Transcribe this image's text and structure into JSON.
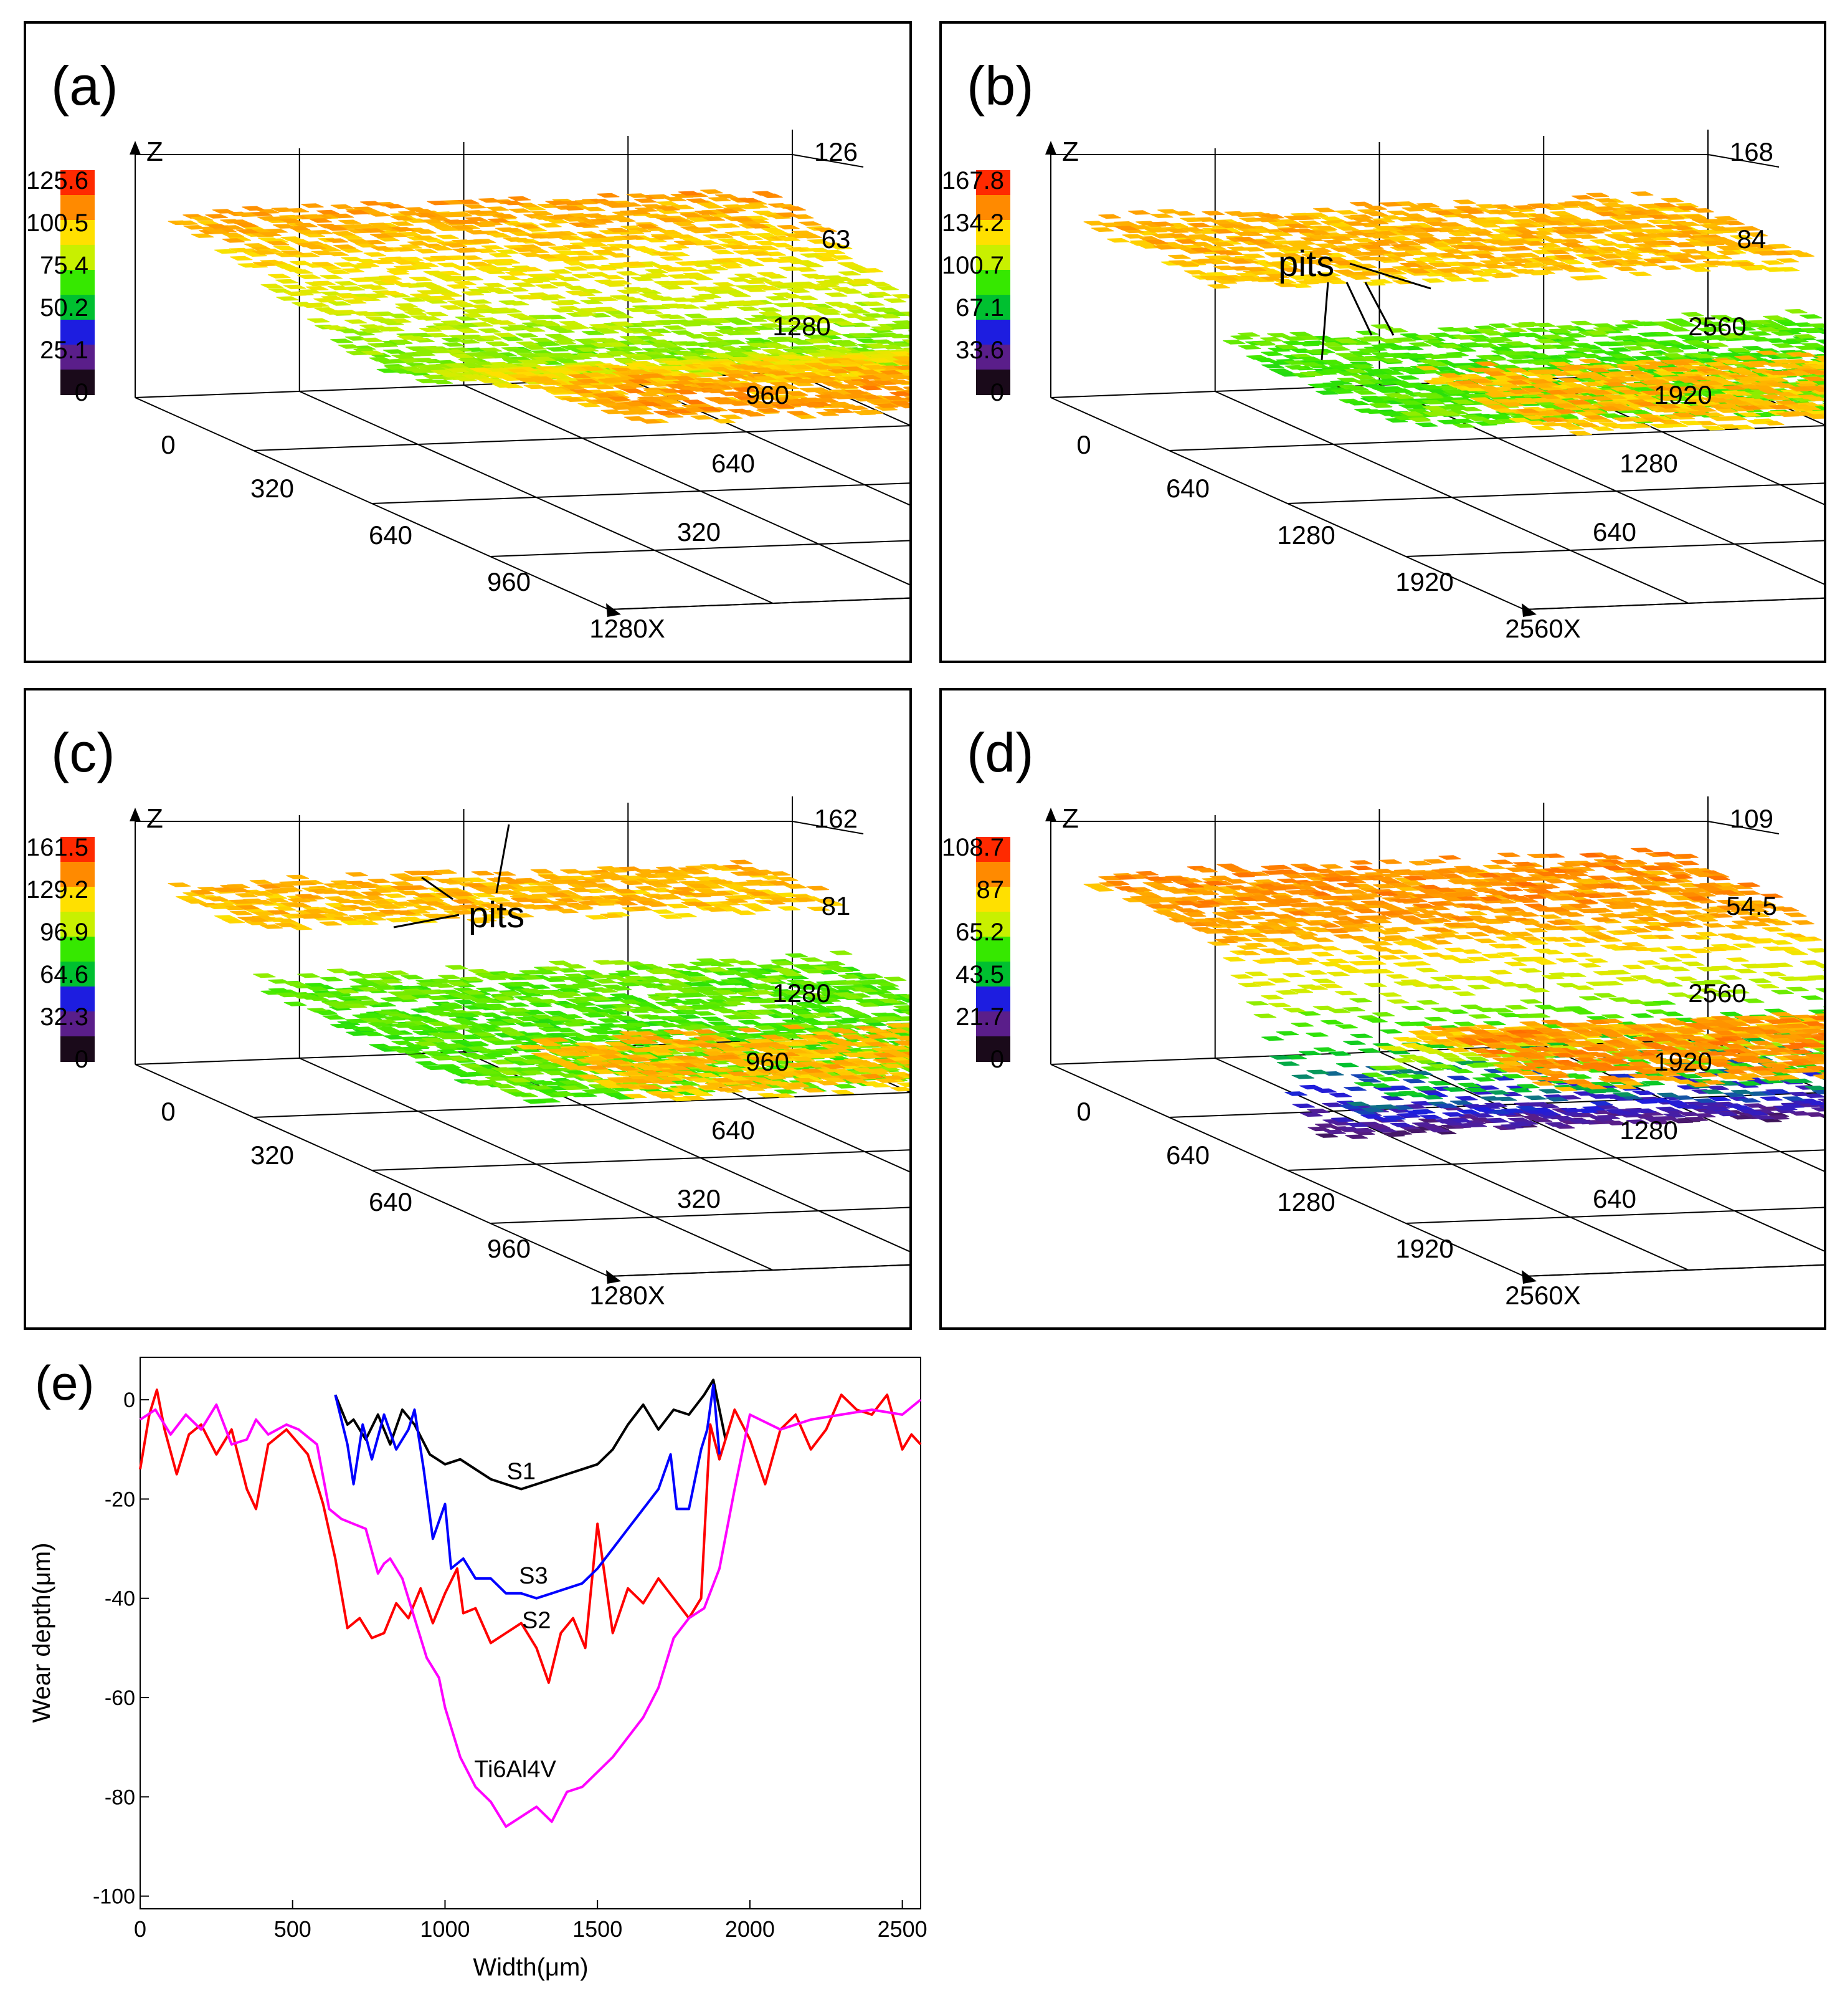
{
  "colors": {
    "colorbar": [
      "#1a0a1a",
      "#5a1e8a",
      "#1d1de0",
      "#00c030",
      "#36e800",
      "#c8f000",
      "#ffe000",
      "#ff8a00",
      "#ff2a00"
    ],
    "S1": "#000000",
    "S2": "#ff0000",
    "S3": "#0000ff",
    "Ti6Al4V": "#ff00ff"
  },
  "panels": [
    {
      "label": "(a)",
      "surface": "worn-track-a",
      "colorbar_ticks": [
        "125.6",
        "100.5",
        "75.4",
        "50.2",
        "25.1",
        "0"
      ],
      "z_axis_label": "Z",
      "z_ticks": [
        "126",
        "63"
      ],
      "y_ticks": [
        "1280",
        "960",
        "640",
        "320"
      ],
      "origin_tick": "0",
      "x_ticks": [
        "320",
        "640",
        "960",
        "1280X"
      ],
      "annotation": ""
    },
    {
      "label": "(b)",
      "surface": "worn-track-b",
      "colorbar_ticks": [
        "167.8",
        "134.2",
        "100.7",
        "67.1",
        "33.6",
        "0"
      ],
      "z_axis_label": "Z",
      "z_ticks": [
        "168",
        "84"
      ],
      "y_ticks": [
        "2560",
        "1920",
        "1280",
        "640"
      ],
      "origin_tick": "0",
      "x_ticks": [
        "640",
        "1280",
        "1920",
        "2560X"
      ],
      "annotation": "pits"
    },
    {
      "label": "(c)",
      "surface": "worn-track-c",
      "colorbar_ticks": [
        "161.5",
        "129.2",
        "96.9",
        "64.6",
        "32.3",
        "0"
      ],
      "z_axis_label": "Z",
      "z_ticks": [
        "162",
        "81"
      ],
      "y_ticks": [
        "1280",
        "960",
        "640",
        "320"
      ],
      "origin_tick": "0",
      "x_ticks": [
        "320",
        "640",
        "960",
        "1280X"
      ],
      "annotation": "pits"
    },
    {
      "label": "(d)",
      "surface": "worn-track-d",
      "colorbar_ticks": [
        "108.7",
        "87",
        "65.2",
        "43.5",
        "21.7",
        "0"
      ],
      "z_axis_label": "Z",
      "z_ticks": [
        "109",
        "54.5"
      ],
      "y_ticks": [
        "2560",
        "1920",
        "1280",
        "640"
      ],
      "origin_tick": "0",
      "x_ticks": [
        "640",
        "1280",
        "1920",
        "2560X"
      ],
      "annotation": ""
    }
  ],
  "chart_data": {
    "type": "line",
    "panel_label": "(e)",
    "xlabel": "Width(μm)",
    "ylabel": "Wear depth(μm)",
    "xlim": [
      0,
      2560
    ],
    "ylim": [
      -100,
      0
    ],
    "xticks": [
      0,
      500,
      1000,
      1500,
      2000,
      2500
    ],
    "yticks": [
      0,
      -20,
      -40,
      -60,
      -80,
      -100
    ],
    "grid": false,
    "series": [
      {
        "name": "S1",
        "color": "#000000",
        "x": [
          640,
          680,
          700,
          740,
          780,
          820,
          860,
          900,
          950,
          1000,
          1050,
          1100,
          1150,
          1200,
          1250,
          1300,
          1350,
          1400,
          1450,
          1500,
          1550,
          1600,
          1650,
          1700,
          1750,
          1800,
          1850,
          1880,
          1920
        ],
        "y": [
          1,
          -5,
          -4,
          -8,
          -3,
          -9,
          -2,
          -5,
          -11,
          -13,
          -12,
          -14,
          -16,
          -17,
          -18,
          -17,
          -16,
          -15,
          -14,
          -13,
          -10,
          -5,
          -1,
          -6,
          -2,
          -3,
          1,
          4,
          -8
        ]
      },
      {
        "name": "S2",
        "color": "#ff0000",
        "x": [
          0,
          30,
          55,
          80,
          120,
          160,
          200,
          250,
          300,
          350,
          380,
          420,
          480,
          550,
          600,
          640,
          680,
          720,
          760,
          800,
          840,
          880,
          920,
          960,
          1000,
          1040,
          1060,
          1100,
          1150,
          1200,
          1250,
          1300,
          1340,
          1380,
          1420,
          1460,
          1500,
          1550,
          1600,
          1650,
          1700,
          1750,
          1800,
          1840,
          1870,
          1900,
          1950,
          2000,
          2050,
          2100,
          2150,
          2200,
          2250,
          2300,
          2350,
          2400,
          2450,
          2500,
          2530,
          2560
        ],
        "y": [
          -14,
          -3,
          2,
          -6,
          -15,
          -7,
          -5,
          -11,
          -6,
          -18,
          -22,
          -9,
          -6,
          -11,
          -21,
          -32,
          -46,
          -44,
          -48,
          -47,
          -41,
          -44,
          -38,
          -45,
          -39,
          -34,
          -43,
          -42,
          -49,
          -47,
          -45,
          -50,
          -57,
          -47,
          -44,
          -50,
          -25,
          -47,
          -38,
          -41,
          -36,
          -40,
          -44,
          -40,
          -5,
          -12,
          -2,
          -8,
          -17,
          -6,
          -3,
          -10,
          -6,
          1,
          -2,
          -3,
          1,
          -10,
          -7,
          -9
        ]
      },
      {
        "name": "S3",
        "color": "#0000ff",
        "x": [
          640,
          680,
          700,
          730,
          760,
          800,
          840,
          880,
          900,
          930,
          960,
          1000,
          1020,
          1060,
          1100,
          1150,
          1200,
          1250,
          1300,
          1350,
          1400,
          1450,
          1500,
          1550,
          1600,
          1650,
          1700,
          1740,
          1760,
          1800,
          1840,
          1860,
          1880,
          1900
        ],
        "y": [
          1,
          -9,
          -17,
          -5,
          -12,
          -3,
          -10,
          -6,
          -2,
          -14,
          -28,
          -21,
          -34,
          -32,
          -36,
          -36,
          -39,
          -39,
          -40,
          -39,
          -38,
          -37,
          -34,
          -30,
          -26,
          -22,
          -18,
          -11,
          -22,
          -22,
          -10,
          -6,
          3,
          -11
        ]
      },
      {
        "name": "Ti6Al4V",
        "color": "#ff00ff",
        "x": [
          0,
          50,
          100,
          150,
          200,
          250,
          300,
          350,
          380,
          420,
          480,
          520,
          580,
          620,
          660,
          700,
          740,
          780,
          800,
          820,
          860,
          900,
          940,
          980,
          1000,
          1050,
          1100,
          1150,
          1200,
          1250,
          1300,
          1350,
          1400,
          1450,
          1500,
          1550,
          1600,
          1650,
          1700,
          1750,
          1800,
          1850,
          1900,
          1950,
          2000,
          2100,
          2200,
          2300,
          2400,
          2500,
          2560
        ],
        "y": [
          -4,
          -2,
          -7,
          -3,
          -6,
          -1,
          -9,
          -8,
          -4,
          -7,
          -5,
          -6,
          -9,
          -22,
          -24,
          -25,
          -26,
          -35,
          -33,
          -32,
          -36,
          -44,
          -52,
          -56,
          -62,
          -72,
          -78,
          -81,
          -86,
          -84,
          -82,
          -85,
          -79,
          -78,
          -75,
          -72,
          -68,
          -64,
          -58,
          -48,
          -44,
          -42,
          -34,
          -18,
          -3,
          -6,
          -4,
          -3,
          -2,
          -3,
          0
        ]
      }
    ],
    "series_labels": [
      {
        "text": "S1",
        "x": 1250,
        "y": -16
      },
      {
        "text": "S3",
        "x": 1290,
        "y": -37
      },
      {
        "text": "S2",
        "x": 1300,
        "y": -46
      },
      {
        "text": "Ti6Al4V",
        "x": 1230,
        "y": -76
      }
    ]
  }
}
